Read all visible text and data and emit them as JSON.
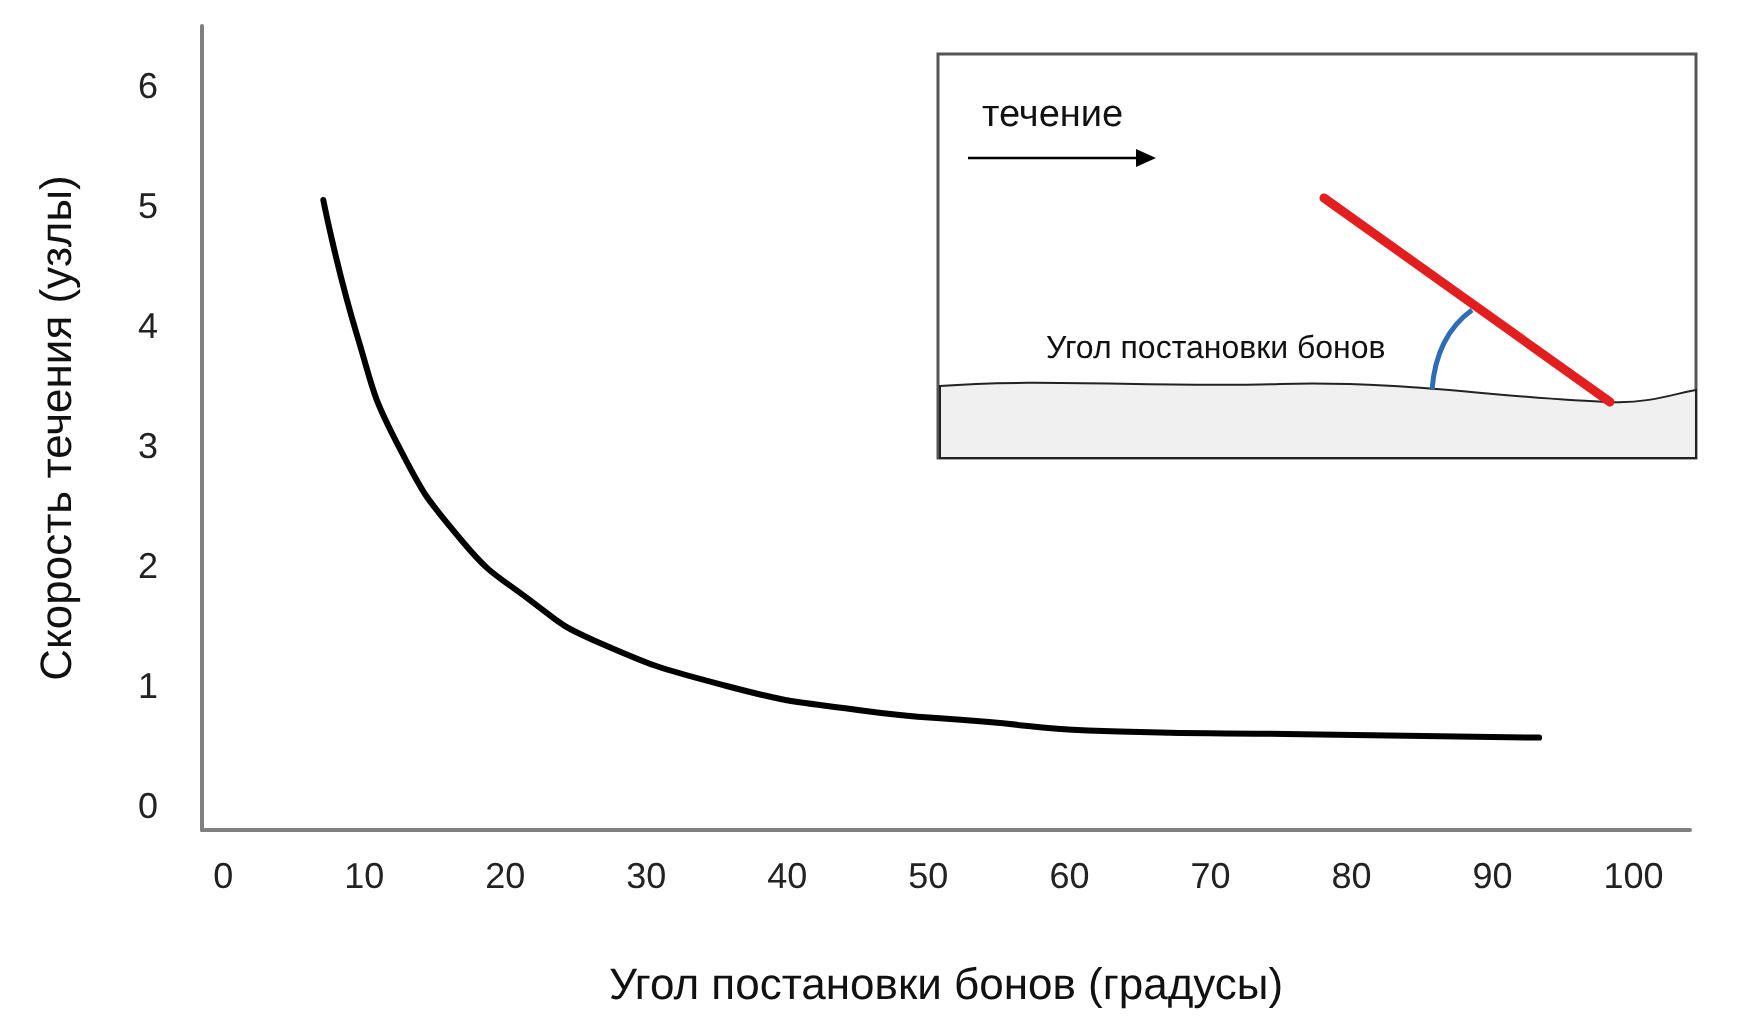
{
  "chart_data": {
    "type": "line",
    "xlabel": "Угол постановки бонов (градусы)",
    "ylabel": "Скорость течения (узлы)",
    "x": [
      7.1,
      9.5,
      12.3,
      17,
      21.7,
      26.3,
      35.7,
      45,
      54.3,
      61.3,
      75.3,
      93.3
    ],
    "series": [
      {
        "color": "#000000",
        "values": [
          5.05,
          3.92,
          3.03,
          2.2,
          1.72,
          1.38,
          1.0,
          0.8,
          0.7,
          0.63,
          0.6,
          0.57
        ]
      }
    ],
    "xlim": [
      -1.5,
      104
    ],
    "ylim": [
      -0.2,
      6.5
    ],
    "xticks": [
      0,
      10,
      20,
      30,
      40,
      50,
      60,
      70,
      80,
      90,
      100
    ],
    "yticks": [
      0,
      1,
      2,
      3,
      4,
      5,
      6
    ],
    "grid": false,
    "marker": "none",
    "line_style": "solid",
    "annotations": [
      "течение",
      "Угол постановки бонов"
    ]
  }
}
